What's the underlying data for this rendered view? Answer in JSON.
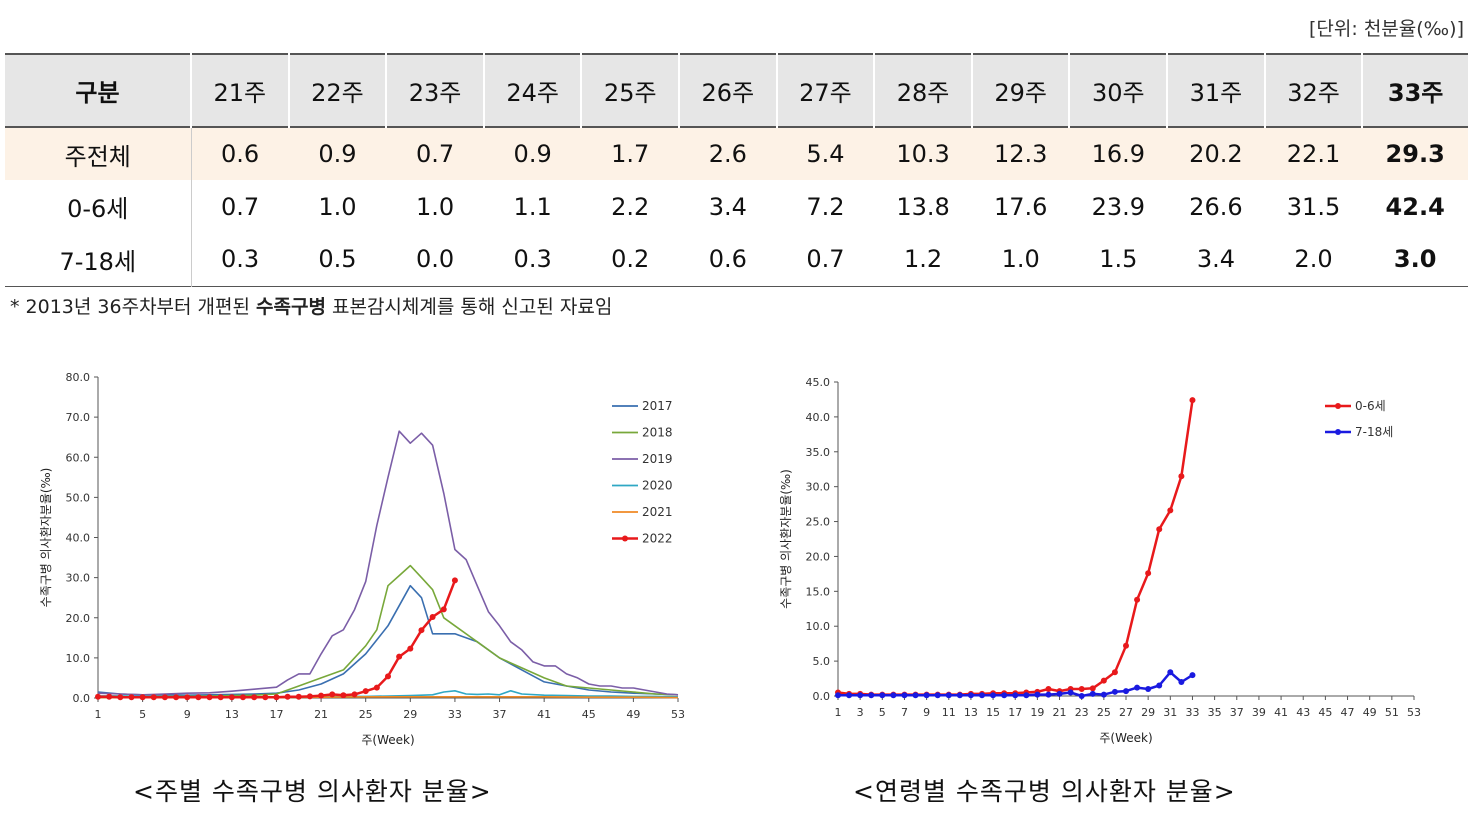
{
  "unit_label": "[단위: 천분율(‰)]",
  "table": {
    "corner": "구분",
    "weeks": [
      "21주",
      "22주",
      "23주",
      "24주",
      "25주",
      "26주",
      "27주",
      "28주",
      "29주",
      "30주",
      "31주",
      "32주",
      "33주"
    ],
    "rows": [
      {
        "label": "주전체",
        "values": [
          "0.6",
          "0.9",
          "0.7",
          "0.9",
          "1.7",
          "2.6",
          "5.4",
          "10.3",
          "12.3",
          "16.9",
          "20.2",
          "22.1",
          "29.3"
        ]
      },
      {
        "label": "0-6세",
        "values": [
          "0.7",
          "1.0",
          "1.0",
          "1.1",
          "2.2",
          "3.4",
          "7.2",
          "13.8",
          "17.6",
          "23.9",
          "26.6",
          "31.5",
          "42.4"
        ]
      },
      {
        "label": "7-18세",
        "values": [
          "0.3",
          "0.5",
          "0.0",
          "0.3",
          "0.2",
          "0.6",
          "0.7",
          "1.2",
          "1.0",
          "1.5",
          "3.4",
          "2.0",
          "3.0"
        ]
      }
    ]
  },
  "note": {
    "prefix": "* 2013년 36주차부터 개편된 ",
    "emphasis": "수족구병",
    "suffix": " 표본감시체계를 통해 신고된 자료임"
  },
  "captions": {
    "left": "<주별 수족구병 의사환자 분율>",
    "right": "<연령별 수족구병 의사환자 분율>"
  },
  "chart_data": [
    {
      "type": "line",
      "xlabel": "주(Week)",
      "ylabel": "수족구병 의사환자분율(‰)",
      "xlim": [
        1,
        53
      ],
      "ylim": [
        0,
        80
      ],
      "yticks": [
        "0.0",
        "10.0",
        "20.0",
        "30.0",
        "40.0",
        "50.0",
        "60.0",
        "70.0",
        "80.0"
      ],
      "xticks": [
        "1",
        "5",
        "9",
        "13",
        "17",
        "21",
        "25",
        "29",
        "33",
        "37",
        "41",
        "45",
        "49",
        "53"
      ],
      "legend_position": "top-right",
      "series": [
        {
          "name": "2017",
          "color": "#3a6fb0",
          "marker": false,
          "x": [
            1,
            3,
            5,
            7,
            9,
            11,
            13,
            15,
            17,
            19,
            21,
            23,
            25,
            27,
            28,
            29,
            30,
            31,
            33,
            35,
            37,
            39,
            41,
            43,
            45,
            47,
            49,
            51,
            53
          ],
          "y": [
            1.5,
            1,
            0.8,
            0.8,
            0.7,
            0.8,
            0.9,
            1.0,
            1.2,
            2,
            3.5,
            6,
            11,
            18,
            23,
            28,
            25,
            16,
            16,
            14,
            10,
            7,
            4,
            3,
            2,
            1.5,
            1.2,
            1,
            0.8
          ]
        },
        {
          "name": "2018",
          "color": "#78a83a",
          "marker": false,
          "x": [
            1,
            3,
            5,
            7,
            9,
            11,
            13,
            15,
            17,
            19,
            21,
            23,
            25,
            26,
            27,
            28,
            29,
            30,
            31,
            32,
            33,
            35,
            37,
            39,
            41,
            43,
            45,
            47,
            49,
            51,
            53
          ],
          "y": [
            0.5,
            0.5,
            0.4,
            0.4,
            0.4,
            0.5,
            0.6,
            0.7,
            1,
            3,
            5,
            7,
            13,
            17,
            28,
            30.5,
            33,
            30,
            27,
            20,
            18,
            14,
            10,
            7.5,
            5,
            3,
            2.5,
            2,
            1.5,
            1,
            0.8
          ]
        },
        {
          "name": "2019",
          "color": "#7b5ea7",
          "marker": false,
          "x": [
            1,
            3,
            5,
            7,
            9,
            11,
            13,
            15,
            17,
            18,
            19,
            20,
            21,
            22,
            23,
            24,
            25,
            26,
            27,
            28,
            29,
            30,
            31,
            32,
            33,
            34,
            35,
            36,
            37,
            38,
            39,
            40,
            41,
            42,
            43,
            44,
            45,
            46,
            47,
            48,
            49,
            50,
            51,
            52,
            53
          ],
          "y": [
            1.2,
            1,
            0.8,
            1,
            1.2,
            1.3,
            1.7,
            2.2,
            2.7,
            4.5,
            6,
            6,
            11,
            15.5,
            17,
            22,
            29,
            43,
            55,
            66.5,
            63.5,
            66,
            63,
            51,
            37,
            34.5,
            28,
            21.5,
            18,
            14,
            12,
            9,
            8,
            8,
            6,
            5,
            3.5,
            3,
            3,
            2.5,
            2.5,
            2,
            1.5,
            1,
            0.8
          ]
        },
        {
          "name": "2020",
          "color": "#2fa8c4",
          "marker": false,
          "x": [
            1,
            3,
            5,
            7,
            9,
            11,
            13,
            15,
            17,
            19,
            21,
            23,
            25,
            27,
            29,
            31,
            32,
            33,
            34,
            35,
            36,
            37,
            38,
            39,
            41,
            43,
            45,
            47,
            49,
            51,
            53
          ],
          "y": [
            0.5,
            0.5,
            0.4,
            0.3,
            0.3,
            0.3,
            0.3,
            0.3,
            0.3,
            0.3,
            0.3,
            0.4,
            0.4,
            0.5,
            0.6,
            0.8,
            1.5,
            1.8,
            1,
            0.9,
            1,
            0.8,
            1.8,
            1,
            0.7,
            0.6,
            0.5,
            0.5,
            0.4,
            0.4,
            0.3
          ]
        },
        {
          "name": "2021",
          "color": "#f08a24",
          "marker": false,
          "x": [
            1,
            5,
            9,
            13,
            17,
            21,
            25,
            29,
            33,
            37,
            41,
            45,
            49,
            53
          ],
          "y": [
            0.1,
            0.1,
            0.1,
            0.1,
            0.1,
            0.2,
            0.3,
            0.3,
            0.3,
            0.3,
            0.3,
            0.2,
            0.2,
            0.1
          ]
        },
        {
          "name": "2022",
          "color": "#e8191b",
          "marker": true,
          "x": [
            1,
            2,
            3,
            4,
            5,
            6,
            7,
            8,
            9,
            10,
            11,
            12,
            13,
            14,
            15,
            16,
            17,
            18,
            19,
            20,
            21,
            22,
            23,
            24,
            25,
            26,
            27,
            28,
            29,
            30,
            31,
            32,
            33
          ],
          "y": [
            0.3,
            0.3,
            0.2,
            0.2,
            0.2,
            0.2,
            0.2,
            0.2,
            0.2,
            0.2,
            0.2,
            0.2,
            0.2,
            0.2,
            0.2,
            0.2,
            0.2,
            0.3,
            0.3,
            0.4,
            0.6,
            0.9,
            0.7,
            0.9,
            1.7,
            2.6,
            5.4,
            10.3,
            12.3,
            16.9,
            20.2,
            22.1,
            29.3
          ]
        }
      ]
    },
    {
      "type": "line",
      "xlabel": "주(Week)",
      "ylabel": "수족구병 의사환자분율(‰)",
      "xlim": [
        1,
        53
      ],
      "ylim": [
        0,
        45
      ],
      "yticks": [
        "0.0",
        "5.0",
        "10.0",
        "15.0",
        "20.0",
        "25.0",
        "30.0",
        "35.0",
        "40.0",
        "45.0"
      ],
      "xticks": [
        "1",
        "3",
        "5",
        "7",
        "9",
        "11",
        "13",
        "15",
        "17",
        "19",
        "21",
        "23",
        "25",
        "27",
        "29",
        "31",
        "33",
        "35",
        "37",
        "39",
        "41",
        "43",
        "45",
        "47",
        "49",
        "51",
        "53"
      ],
      "legend_position": "top-right",
      "series": [
        {
          "name": "0-6세",
          "color": "#e8191b",
          "marker": true,
          "x": [
            1,
            2,
            3,
            4,
            5,
            6,
            7,
            8,
            9,
            10,
            11,
            12,
            13,
            14,
            15,
            16,
            17,
            18,
            19,
            20,
            21,
            22,
            23,
            24,
            25,
            26,
            27,
            28,
            29,
            30,
            31,
            32,
            33
          ],
          "y": [
            0.5,
            0.3,
            0.3,
            0.2,
            0.2,
            0.2,
            0.2,
            0.2,
            0.2,
            0.2,
            0.2,
            0.2,
            0.3,
            0.3,
            0.4,
            0.4,
            0.4,
            0.5,
            0.6,
            1.0,
            0.7,
            1.0,
            1.0,
            1.1,
            2.2,
            3.4,
            7.2,
            13.8,
            17.6,
            23.9,
            26.6,
            31.5,
            42.4
          ]
        },
        {
          "name": "7-18세",
          "color": "#1a1ae0",
          "marker": true,
          "x": [
            1,
            2,
            3,
            4,
            5,
            6,
            7,
            8,
            9,
            10,
            11,
            12,
            13,
            14,
            15,
            16,
            17,
            18,
            19,
            20,
            21,
            22,
            23,
            24,
            25,
            26,
            27,
            28,
            29,
            30,
            31,
            32,
            33
          ],
          "y": [
            0.1,
            0.1,
            0.1,
            0.1,
            0.1,
            0.1,
            0.1,
            0.1,
            0.1,
            0.1,
            0.1,
            0.1,
            0.1,
            0.1,
            0.1,
            0.1,
            0.1,
            0.1,
            0.2,
            0.2,
            0.3,
            0.5,
            0.0,
            0.3,
            0.2,
            0.6,
            0.7,
            1.2,
            1.0,
            1.5,
            3.4,
            2.0,
            3.0
          ]
        }
      ]
    }
  ]
}
